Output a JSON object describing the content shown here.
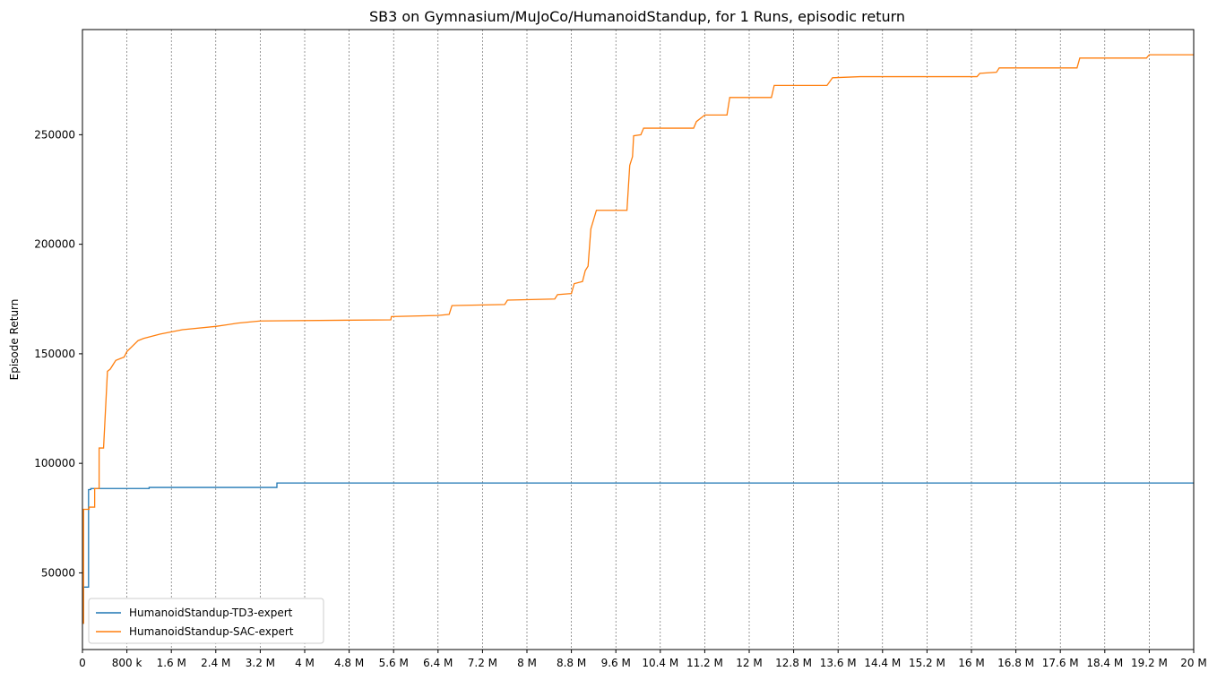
{
  "chart_data": {
    "type": "line",
    "title": "SB3 on Gymnasium/MuJoCo/HumanoidStandup, for 1 Runs, episodic return",
    "xlabel": "",
    "ylabel": "Episode Return",
    "xlim": [
      0,
      20000000
    ],
    "ylim": [
      15000,
      298000
    ],
    "x_ticks": [
      {
        "value": 0,
        "label": "0"
      },
      {
        "value": 800000,
        "label": "800 k"
      },
      {
        "value": 1600000,
        "label": "1.6 M"
      },
      {
        "value": 2400000,
        "label": "2.4 M"
      },
      {
        "value": 3200000,
        "label": "3.2 M"
      },
      {
        "value": 4000000,
        "label": "4 M"
      },
      {
        "value": 4800000,
        "label": "4.8 M"
      },
      {
        "value": 5600000,
        "label": "5.6 M"
      },
      {
        "value": 6400000,
        "label": "6.4 M"
      },
      {
        "value": 7200000,
        "label": "7.2 M"
      },
      {
        "value": 8000000,
        "label": "8 M"
      },
      {
        "value": 8800000,
        "label": "8.8 M"
      },
      {
        "value": 9600000,
        "label": "9.6 M"
      },
      {
        "value": 10400000,
        "label": "10.4 M"
      },
      {
        "value": 11200000,
        "label": "11.2 M"
      },
      {
        "value": 12000000,
        "label": "12 M"
      },
      {
        "value": 12800000,
        "label": "12.8 M"
      },
      {
        "value": 13600000,
        "label": "13.6 M"
      },
      {
        "value": 14400000,
        "label": "14.4 M"
      },
      {
        "value": 15200000,
        "label": "15.2 M"
      },
      {
        "value": 16000000,
        "label": "16 M"
      },
      {
        "value": 16800000,
        "label": "16.8 M"
      },
      {
        "value": 17600000,
        "label": "17.6 M"
      },
      {
        "value": 18400000,
        "label": "18.4 M"
      },
      {
        "value": 19200000,
        "label": "19.2 M"
      },
      {
        "value": 20000000,
        "label": "20 M"
      }
    ],
    "y_ticks": [
      {
        "value": 50000,
        "label": "50000"
      },
      {
        "value": 100000,
        "label": "100000"
      },
      {
        "value": 150000,
        "label": "150000"
      },
      {
        "value": 200000,
        "label": "200000"
      },
      {
        "value": 250000,
        "label": "250000"
      }
    ],
    "grid": "vertical dashed",
    "legend_position": "bottom-left",
    "series": [
      {
        "name": "HumanoidStandup-TD3-expert",
        "color": "#1f77b4",
        "x": [
          0,
          20000,
          20000,
          110000,
          110000,
          150000,
          150000,
          1200000,
          1200000,
          3500000,
          3500000,
          20000000
        ],
        "y": [
          27000,
          27000,
          43500,
          43500,
          88000,
          88000,
          88500,
          88500,
          89000,
          89000,
          91000,
          91000
        ]
      },
      {
        "name": "HumanoidStandup-SAC-expert",
        "color": "#ff7f0e",
        "x": [
          0,
          20000,
          20000,
          120000,
          120000,
          220000,
          220000,
          300000,
          300000,
          380000,
          450000,
          500000,
          600000,
          700000,
          750000,
          800000,
          1000000,
          1100000,
          1400000,
          1800000,
          2400000,
          2800000,
          3200000,
          5550000,
          5560000,
          6400000,
          6600000,
          6650000,
          7600000,
          7650000,
          8500000,
          8550000,
          8800000,
          8850000,
          9000000,
          9050000,
          9100000,
          9150000,
          9250000,
          9300000,
          9800000,
          9850000,
          9900000,
          9920000,
          10050000,
          10100000,
          11000000,
          11050000,
          11200000,
          11600000,
          11650000,
          12400000,
          12450000,
          13400000,
          13500000,
          14000000,
          16100000,
          16150000,
          16450000,
          16500000,
          17900000,
          17950000,
          19150000,
          19200000,
          20000000
        ],
        "y": [
          27000,
          27000,
          79000,
          79000,
          80000,
          80000,
          88500,
          88500,
          107000,
          107000,
          142000,
          143000,
          147000,
          148000,
          148500,
          151000,
          156000,
          157000,
          159000,
          161000,
          162500,
          164000,
          165000,
          165500,
          167000,
          167500,
          168000,
          172000,
          172500,
          174500,
          175000,
          177000,
          177500,
          182000,
          183000,
          188000,
          190000,
          207000,
          215500,
          215500,
          215500,
          236000,
          240000,
          249500,
          250000,
          253000,
          253000,
          256000,
          259000,
          259000,
          267000,
          267000,
          272500,
          272500,
          276000,
          276500,
          276500,
          278000,
          278500,
          280500,
          280500,
          285000,
          285000,
          286500,
          286500
        ]
      }
    ]
  }
}
